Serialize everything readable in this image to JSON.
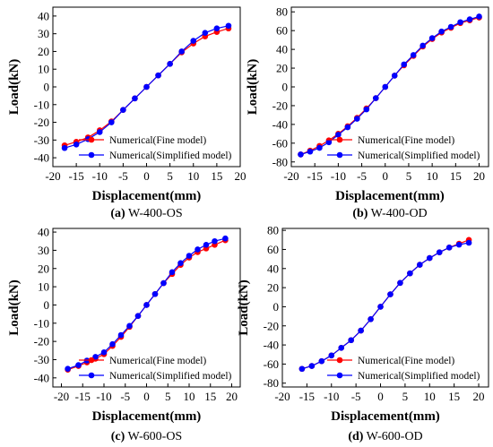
{
  "chart_data": [
    {
      "type": "line",
      "caption_letter": "(a)",
      "caption_text": " W-400-OS",
      "xlabel": "Displacement(mm)",
      "ylabel": "Load(kN)",
      "xlim": [
        -20,
        20
      ],
      "ylim": [
        -45,
        45
      ],
      "xticks": [
        -20,
        -15,
        -10,
        -5,
        0,
        5,
        10,
        15,
        20
      ],
      "yticks": [
        -40,
        -30,
        -20,
        -10,
        0,
        10,
        20,
        30,
        40
      ],
      "legend_position": "bottom-right",
      "series": [
        {
          "name": "Numerical(Fine model)",
          "color": "#ff0000",
          "x": [
            -17.5,
            -15,
            -12.5,
            -10,
            -7.5,
            -5,
            -2.5,
            0,
            2.5,
            5,
            7.5,
            10,
            12.5,
            15,
            17.5
          ],
          "y": [
            -33,
            -31,
            -28.5,
            -24.5,
            -19.5,
            -13,
            -6.5,
            0,
            6.5,
            13,
            19.5,
            24.5,
            28.5,
            31,
            33
          ]
        },
        {
          "name": "Numerical(Simplified model)",
          "color": "#0000ff",
          "x": [
            -17.5,
            -15,
            -12.5,
            -10,
            -7.5,
            -5,
            -2.5,
            0,
            2.5,
            5,
            7.5,
            10,
            12.5,
            15,
            17.5
          ],
          "y": [
            -34.5,
            -32.5,
            -29.5,
            -25.5,
            -20,
            -13,
            -6.5,
            0,
            6.5,
            13,
            20,
            26,
            30.5,
            33,
            34.5
          ]
        }
      ]
    },
    {
      "type": "line",
      "caption_letter": "(b)",
      "caption_text": " W-400-OD",
      "xlabel": "Displacement(mm)",
      "ylabel": "Load(kN)",
      "xlim": [
        -20,
        22
      ],
      "ylim": [
        -85,
        85
      ],
      "xticks": [
        -20,
        -15,
        -10,
        -5,
        0,
        5,
        10,
        15,
        20
      ],
      "yticks": [
        -80,
        -60,
        -40,
        -20,
        0,
        20,
        40,
        60,
        80
      ],
      "legend_position": "bottom-right",
      "series": [
        {
          "name": "Numerical(Fine model)",
          "color": "#ff0000",
          "x": [
            -18,
            -16,
            -14,
            -12,
            -10,
            -8,
            -6,
            -4,
            -2,
            0,
            2,
            4,
            6,
            8,
            10,
            12,
            14,
            16,
            18,
            20
          ],
          "y": [
            -72,
            -68,
            -63,
            -57,
            -50,
            -42,
            -33,
            -23,
            -12,
            0,
            12,
            23,
            33,
            43,
            51,
            58,
            63,
            68,
            71,
            74
          ]
        },
        {
          "name": "Numerical(Simplified model)",
          "color": "#0000ff",
          "x": [
            -18,
            -16,
            -14,
            -12,
            -10,
            -8,
            -6,
            -4,
            -2,
            0,
            2,
            4,
            6,
            8,
            10,
            12,
            14,
            16,
            18,
            20
          ],
          "y": [
            -72,
            -69,
            -65,
            -59,
            -51,
            -43,
            -34,
            -24,
            -12,
            0,
            12,
            24,
            34,
            44,
            52,
            59,
            64,
            69,
            72,
            75
          ]
        }
      ]
    },
    {
      "type": "line",
      "caption_letter": "(c)",
      "caption_text": " W-600-OS",
      "xlabel": "Displacement(mm)",
      "ylabel": "Load(kN)",
      "xlim": [
        -22,
        22
      ],
      "ylim": [
        -45,
        42
      ],
      "xticks": [
        -20,
        -15,
        -10,
        -5,
        0,
        5,
        10,
        15,
        20
      ],
      "yticks": [
        -40,
        -30,
        -20,
        -10,
        0,
        10,
        20,
        30,
        40
      ],
      "legend_position": "bottom-right",
      "series": [
        {
          "name": "Numerical(Fine model)",
          "color": "#ff0000",
          "x": [
            -18.5,
            -16,
            -14,
            -12,
            -10,
            -8,
            -6,
            -4,
            -2,
            0,
            2,
            4,
            6,
            8,
            10,
            12,
            14,
            16,
            18.5
          ],
          "y": [
            -35.5,
            -33.5,
            -31.5,
            -29.5,
            -27,
            -22.5,
            -17.5,
            -12,
            -6,
            0,
            6,
            12,
            17,
            22,
            26,
            29,
            31,
            33,
            35.5
          ]
        },
        {
          "name": "Numerical(Simplified model)",
          "color": "#0000ff",
          "x": [
            -18.5,
            -16,
            -14,
            -12,
            -10,
            -8,
            -6,
            -4,
            -2,
            0,
            2,
            4,
            6,
            8,
            10,
            12,
            14,
            16,
            18.5
          ],
          "y": [
            -35,
            -33,
            -30.5,
            -28.5,
            -26,
            -21.5,
            -16.5,
            -11.5,
            -6,
            0,
            6,
            12,
            18,
            23,
            27,
            30.5,
            33,
            35,
            36.5
          ]
        }
      ]
    },
    {
      "type": "line",
      "caption_letter": "(d)",
      "caption_text": " W-600-OD",
      "xlabel": "Displacement(mm)",
      "ylabel": "Load(kN)",
      "xlim": [
        -20,
        22
      ],
      "ylim": [
        -84,
        82
      ],
      "xticks": [
        -20,
        -15,
        -10,
        -5,
        0,
        5,
        10,
        15,
        20
      ],
      "yticks": [
        -80,
        -60,
        -40,
        -20,
        0,
        20,
        40,
        60,
        80
      ],
      "legend_position": "bottom-right",
      "series": [
        {
          "name": "Numerical(Fine model)",
          "color": "#ff0000",
          "x": [
            -16,
            -14,
            -12,
            -10,
            -8,
            -6,
            -4,
            -2,
            0,
            2,
            4,
            6,
            8,
            10,
            12,
            14,
            16,
            18
          ],
          "y": [
            -65,
            -62,
            -57,
            -51,
            -43,
            -35,
            -25,
            -13,
            0,
            13,
            25,
            35,
            44,
            51,
            57,
            62,
            66,
            70
          ]
        },
        {
          "name": "Numerical(Simplified model)",
          "color": "#0000ff",
          "x": [
            -16,
            -14,
            -12,
            -10,
            -8,
            -6,
            -4,
            -2,
            0,
            2,
            4,
            6,
            8,
            10,
            12,
            14,
            16,
            18
          ],
          "y": [
            -65,
            -62,
            -57,
            -51,
            -43,
            -35,
            -25,
            -13,
            0,
            13,
            25,
            35,
            44,
            51,
            57,
            62,
            65,
            67
          ]
        }
      ]
    }
  ]
}
